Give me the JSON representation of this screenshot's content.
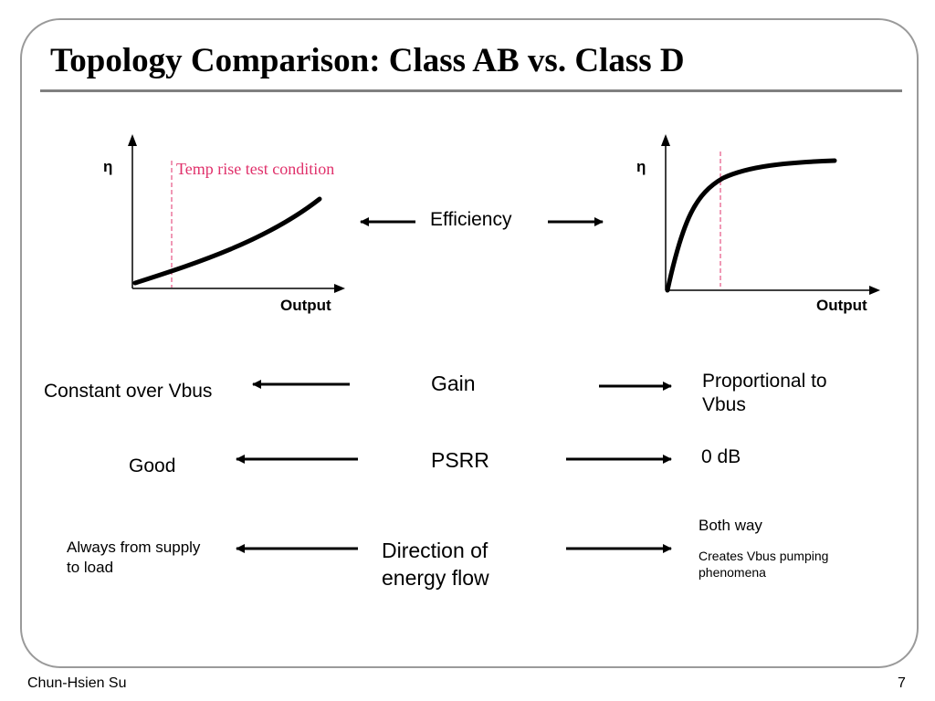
{
  "slide": {
    "title": "Topology Comparison: Class AB vs. Class D",
    "footer_author": "Chun-Hsien Su",
    "page_number": "7"
  },
  "charts": {
    "left": {
      "y_axis_label": "η",
      "x_axis_label": "Output",
      "annotation": "Temp rise test condition"
    },
    "right": {
      "y_axis_label": "η",
      "x_axis_label": "Output"
    }
  },
  "rows": [
    {
      "parameter": "Efficiency",
      "class_ab": "",
      "class_d": ""
    },
    {
      "parameter": "Gain",
      "class_ab": "Constant over Vbus",
      "class_d": "Proportional to Vbus"
    },
    {
      "parameter": "PSRR",
      "class_ab": "Good",
      "class_d": "0 dB"
    },
    {
      "parameter": "Direction of energy flow",
      "class_ab": "Always from supply to load",
      "class_d": "Both way",
      "class_d_note": "Creates Vbus pumping phenomena"
    }
  ],
  "colors": {
    "annotation": "#e0316b",
    "frame": "#9a9a9a",
    "title_rule": "#808080"
  }
}
